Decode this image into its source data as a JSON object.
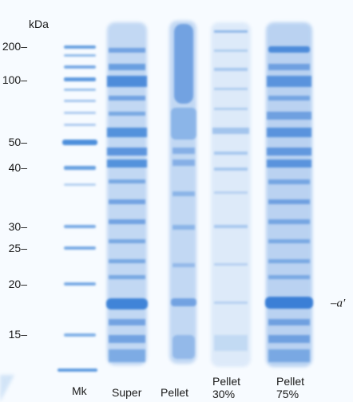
{
  "figure": {
    "unit_label": "kDa",
    "band_color": "#3a7fd6",
    "gel_background": "#fbfdff"
  },
  "mw_markers": [
    {
      "label": "200–",
      "kda": 200
    },
    {
      "label": "100–",
      "kda": 100
    },
    {
      "label": "50–",
      "kda": 50
    },
    {
      "label": "40–",
      "kda": 40
    },
    {
      "label": "30–",
      "kda": 30
    },
    {
      "label": "25–",
      "kda": 25
    },
    {
      "label": "20–",
      "kda": 20
    },
    {
      "label": "15–",
      "kda": 15
    }
  ],
  "lanes": [
    {
      "label": "Mk"
    },
    {
      "label": "Super"
    },
    {
      "label": "Pellet"
    },
    {
      "label": "Pellet\n30%"
    },
    {
      "label": "Pellet\n75%"
    }
  ],
  "annotation": {
    "label": "–a′"
  }
}
